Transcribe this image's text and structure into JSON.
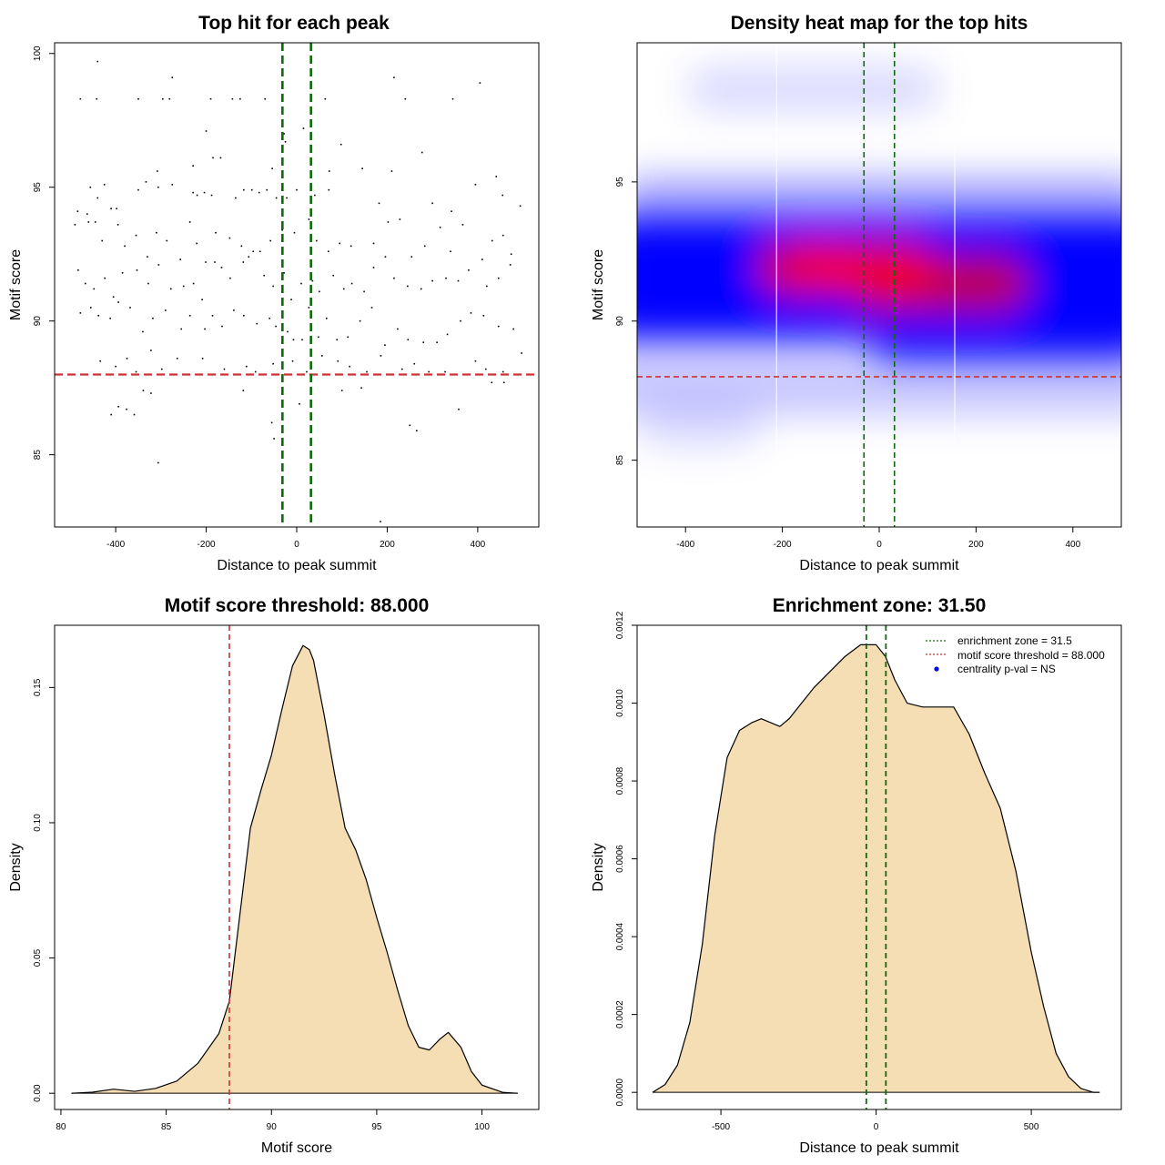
{
  "colors": {
    "threshold": "#cc3333",
    "zone": "#0b6b0b",
    "fill": "#f5deb3",
    "heat_low": "#ffffff",
    "heat_mid": "#0000ff",
    "heat_high": "#ff0000",
    "pval_marker": "#0000ff"
  },
  "chart_data": [
    {
      "type": "scatter",
      "title": "Top hit for each peak",
      "xlabel": "Distance to peak summit",
      "ylabel": "Motif score",
      "xlim": [
        -535,
        535
      ],
      "ylim": [
        82.3,
        100.4
      ],
      "xticks": [
        -400,
        -200,
        0,
        200,
        400
      ],
      "yticks": [
        85,
        90,
        95,
        100
      ],
      "xtick_labels": [
        "-400",
        "-200",
        "0",
        "200",
        "400"
      ],
      "ytick_labels": [
        "85",
        "90",
        "95",
        "100"
      ],
      "hline": 88.0,
      "vlines": [
        -31.5,
        31.5
      ],
      "points": [
        [
          -440,
          99.7
        ],
        [
          -478,
          98.3
        ],
        [
          -442,
          98.3
        ],
        [
          -350,
          98.3
        ],
        [
          -296,
          98.3
        ],
        [
          -281,
          98.3
        ],
        [
          -275,
          99.1
        ],
        [
          -190,
          98.3
        ],
        [
          -142,
          98.3
        ],
        [
          -125,
          98.3
        ],
        [
          -70,
          98.3
        ],
        [
          63,
          98.3
        ],
        [
          215,
          99.1
        ],
        [
          240,
          98.3
        ],
        [
          345,
          98.3
        ],
        [
          405,
          98.9
        ],
        [
          -200,
          97.1
        ],
        [
          -28,
          97.0
        ],
        [
          -25,
          96.7
        ],
        [
          15,
          97.2
        ],
        [
          98,
          96.6
        ],
        [
          -185,
          96.1
        ],
        [
          -168,
          96.1
        ],
        [
          -308,
          95.6
        ],
        [
          -229,
          95.8
        ],
        [
          -54,
          95.7
        ],
        [
          72,
          95.6
        ],
        [
          145,
          95.7
        ],
        [
          210,
          95.6
        ],
        [
          277,
          96.3
        ],
        [
          441,
          95.4
        ],
        [
          -484,
          94.1
        ],
        [
          -463,
          94.0
        ],
        [
          -456,
          95.0
        ],
        [
          -440,
          94.6
        ],
        [
          -425,
          95.1
        ],
        [
          -410,
          94.2
        ],
        [
          -398,
          94.2
        ],
        [
          -350,
          94.9
        ],
        [
          -333,
          95.2
        ],
        [
          -306,
          95.0
        ],
        [
          -275,
          95.1
        ],
        [
          -229,
          94.8
        ],
        [
          -220,
          94.7
        ],
        [
          -204,
          94.8
        ],
        [
          -188,
          94.7
        ],
        [
          -135,
          94.6
        ],
        [
          -117,
          94.9
        ],
        [
          -99,
          94.9
        ],
        [
          -83,
          94.8
        ],
        [
          -66,
          94.9
        ],
        [
          -45,
          94.6
        ],
        [
          -22,
          94.6
        ],
        [
          0,
          94.9
        ],
        [
          40,
          94.7
        ],
        [
          71,
          94.9
        ],
        [
          182,
          94.4
        ],
        [
          300,
          94.4
        ],
        [
          342,
          94.1
        ],
        [
          395,
          95.1
        ],
        [
          455,
          94.7
        ],
        [
          494,
          94.3
        ],
        [
          -490,
          93.6
        ],
        [
          -460,
          93.7
        ],
        [
          -445,
          93.7
        ],
        [
          -430,
          93.0
        ],
        [
          -395,
          93.6
        ],
        [
          -380,
          92.8
        ],
        [
          -355,
          93.2
        ],
        [
          -330,
          92.4
        ],
        [
          -310,
          93.3
        ],
        [
          -287,
          93.0
        ],
        [
          -257,
          92.3
        ],
        [
          -236,
          93.7
        ],
        [
          -221,
          92.9
        ],
        [
          -201,
          92.2
        ],
        [
          -179,
          93.3
        ],
        [
          -148,
          93.1
        ],
        [
          -122,
          92.8
        ],
        [
          -106,
          92.4
        ],
        [
          -81,
          92.6
        ],
        [
          -58,
          93.0
        ],
        [
          -32,
          93.4
        ],
        [
          -5,
          93.3
        ],
        [
          27,
          93.8
        ],
        [
          44,
          93.0
        ],
        [
          70,
          92.6
        ],
        [
          95,
          92.9
        ],
        [
          120,
          92.8
        ],
        [
          170,
          92.9
        ],
        [
          202,
          93.7
        ],
        [
          228,
          93.8
        ],
        [
          254,
          92.4
        ],
        [
          283,
          92.8
        ],
        [
          317,
          93.5
        ],
        [
          340,
          92.6
        ],
        [
          367,
          93.6
        ],
        [
          410,
          92.3
        ],
        [
          432,
          93.0
        ],
        [
          456,
          93.2
        ],
        [
          474,
          92.5
        ],
        [
          -483,
          91.9
        ],
        [
          -467,
          91.4
        ],
        [
          -448,
          91.2
        ],
        [
          -424,
          91.6
        ],
        [
          -405,
          90.9
        ],
        [
          -385,
          91.8
        ],
        [
          -353,
          91.9
        ],
        [
          -328,
          91.4
        ],
        [
          -305,
          92.1
        ],
        [
          -278,
          91.2
        ],
        [
          -250,
          91.3
        ],
        [
          -228,
          91.4
        ],
        [
          -209,
          90.8
        ],
        [
          -181,
          92.2
        ],
        [
          -166,
          92.0
        ],
        [
          -147,
          91.6
        ],
        [
          -118,
          92.2
        ],
        [
          -96,
          92.6
        ],
        [
          -72,
          91.7
        ],
        [
          -52,
          91.3
        ],
        [
          -28,
          91.8
        ],
        [
          -12,
          90.8
        ],
        [
          10,
          91.4
        ],
        [
          35,
          91.5
        ],
        [
          50,
          91.1
        ],
        [
          81,
          91.7
        ],
        [
          104,
          91.2
        ],
        [
          122,
          91.4
        ],
        [
          149,
          91.1
        ],
        [
          170,
          92.0
        ],
        [
          196,
          92.4
        ],
        [
          215,
          91.6
        ],
        [
          245,
          91.3
        ],
        [
          275,
          91.2
        ],
        [
          300,
          91.5
        ],
        [
          330,
          91.6
        ],
        [
          357,
          91.5
        ],
        [
          380,
          91.9
        ],
        [
          420,
          91.3
        ],
        [
          446,
          91.6
        ],
        [
          472,
          92.1
        ],
        [
          -478,
          90.3
        ],
        [
          -455,
          90.5
        ],
        [
          -438,
          90.2
        ],
        [
          -412,
          90.1
        ],
        [
          -394,
          90.7
        ],
        [
          -368,
          90.5
        ],
        [
          -340,
          89.6
        ],
        [
          -318,
          90.1
        ],
        [
          -290,
          90.4
        ],
        [
          -255,
          89.7
        ],
        [
          -236,
          90.2
        ],
        [
          -203,
          89.7
        ],
        [
          -186,
          90.2
        ],
        [
          -165,
          89.8
        ],
        [
          -139,
          90.4
        ],
        [
          -117,
          90.2
        ],
        [
          -88,
          89.9
        ],
        [
          -60,
          90.1
        ],
        [
          -46,
          89.8
        ],
        [
          -20,
          89.6
        ],
        [
          -7,
          89.3
        ],
        [
          12,
          89.3
        ],
        [
          27,
          90.5
        ],
        [
          48,
          89.4
        ],
        [
          66,
          90.1
        ],
        [
          89,
          89.3
        ],
        [
          113,
          89.4
        ],
        [
          140,
          90.0
        ],
        [
          166,
          90.5
        ],
        [
          195,
          89.1
        ],
        [
          223,
          89.7
        ],
        [
          246,
          89.3
        ],
        [
          280,
          89.2
        ],
        [
          310,
          89.2
        ],
        [
          333,
          89.5
        ],
        [
          362,
          90.0
        ],
        [
          385,
          90.3
        ],
        [
          413,
          90.2
        ],
        [
          446,
          89.8
        ],
        [
          479,
          89.7
        ],
        [
          -434,
          88.5
        ],
        [
          -400,
          88.3
        ],
        [
          -375,
          88.6
        ],
        [
          -355,
          88.1
        ],
        [
          -322,
          88.9
        ],
        [
          -298,
          88.2
        ],
        [
          -264,
          88.6
        ],
        [
          -208,
          88.6
        ],
        [
          -160,
          88.2
        ],
        [
          -111,
          88.3
        ],
        [
          -91,
          88.1
        ],
        [
          -52,
          88.4
        ],
        [
          -9,
          88.5
        ],
        [
          22,
          88.1
        ],
        [
          56,
          88.7
        ],
        [
          91,
          88.5
        ],
        [
          117,
          88.3
        ],
        [
          155,
          88.1
        ],
        [
          186,
          88.7
        ],
        [
          233,
          88.2
        ],
        [
          260,
          88.4
        ],
        [
          292,
          88.1
        ],
        [
          328,
          88.1
        ],
        [
          395,
          88.5
        ],
        [
          418,
          88.2
        ],
        [
          456,
          88.1
        ],
        [
          497,
          88.8
        ],
        [
          -410,
          86.5
        ],
        [
          -394,
          86.8
        ],
        [
          -376,
          86.7
        ],
        [
          -359,
          86.5
        ],
        [
          -339,
          87.4
        ],
        [
          -322,
          87.3
        ],
        [
          -118,
          87.4
        ],
        [
          6,
          86.9
        ],
        [
          100,
          87.4
        ],
        [
          143,
          87.5
        ],
        [
          250,
          86.1
        ],
        [
          265,
          85.9
        ],
        [
          358,
          86.7
        ],
        [
          431,
          87.7
        ],
        [
          458,
          87.7
        ],
        [
          -306,
          84.7
        ],
        [
          -55,
          86.2
        ],
        [
          -50,
          85.6
        ],
        [
          185,
          82.5
        ]
      ]
    },
    {
      "type": "heatmap",
      "title": "Density heat map for the top hits",
      "xlabel": "Distance to peak summit",
      "ylabel": "Motif score",
      "xlim": [
        -500,
        500
      ],
      "ylim": [
        82.6,
        100.0
      ],
      "xticks": [
        -400,
        -200,
        0,
        200,
        400
      ],
      "yticks": [
        85,
        90,
        95
      ],
      "xtick_labels": [
        "-400",
        "-200",
        "0",
        "200",
        "400"
      ],
      "ytick_labels": [
        "85",
        "90",
        "95"
      ],
      "hline": 88.0,
      "vlines": [
        -31.5,
        31.5
      ],
      "white_vlines": [
        -212,
        156
      ]
    },
    {
      "type": "area",
      "title": "Motif score threshold: 88.000",
      "xlabel": "Motif score",
      "ylabel": "Density",
      "xlim": [
        79.7,
        102.7
      ],
      "ylim": [
        -0.006,
        0.173
      ],
      "xticks": [
        80,
        85,
        90,
        95,
        100
      ],
      "yticks": [
        0.0,
        0.05,
        0.1,
        0.15
      ],
      "xtick_labels": [
        "80",
        "85",
        "90",
        "95",
        "100"
      ],
      "ytick_labels": [
        "0.00",
        "0.05",
        "0.10",
        "0.15"
      ],
      "vline": 88.0,
      "x": [
        80.5,
        81.5,
        82.5,
        83.5,
        84.5,
        85.5,
        86.5,
        87.5,
        88.0,
        88.5,
        89.0,
        89.5,
        90.0,
        90.5,
        91.0,
        91.5,
        91.8,
        92.0,
        92.5,
        93.0,
        93.5,
        94.0,
        94.5,
        95.0,
        95.5,
        96.0,
        96.5,
        97.0,
        97.5,
        98.0,
        98.4,
        99.0,
        99.5,
        100.0,
        101.0,
        101.7
      ],
      "y": [
        0.0,
        0.0004,
        0.0015,
        0.0007,
        0.0018,
        0.0045,
        0.011,
        0.022,
        0.034,
        0.066,
        0.098,
        0.112,
        0.125,
        0.142,
        0.158,
        0.1655,
        0.164,
        0.16,
        0.14,
        0.118,
        0.098,
        0.09,
        0.079,
        0.065,
        0.052,
        0.038,
        0.025,
        0.017,
        0.016,
        0.02,
        0.0225,
        0.017,
        0.008,
        0.003,
        0.0003,
        0.0
      ]
    },
    {
      "type": "area",
      "title": "Enrichment zone: 31.50",
      "xlabel": "Distance to peak summit",
      "ylabel": "Density",
      "xlim": [
        -770,
        790
      ],
      "ylim": [
        -4.4e-05,
        0.0012
      ],
      "xticks": [
        -500,
        0,
        500
      ],
      "yticks": [
        0.0,
        0.0002,
        0.0004,
        0.0006,
        0.0008,
        0.001,
        0.0012
      ],
      "xtick_labels": [
        "-500",
        "0",
        "500"
      ],
      "ytick_labels": [
        "0.0000",
        "0.0002",
        "0.0004",
        "0.0006",
        "0.0008",
        "0.0010",
        "0.0012"
      ],
      "vlines": [
        -31.5,
        31.5
      ],
      "x": [
        -720,
        -680,
        -640,
        -600,
        -560,
        -520,
        -480,
        -440,
        -400,
        -370,
        -340,
        -310,
        -280,
        -250,
        -200,
        -150,
        -100,
        -50,
        0,
        30,
        60,
        100,
        150,
        200,
        250,
        300,
        350,
        400,
        450,
        500,
        540,
        580,
        620,
        660,
        700,
        720
      ],
      "y": [
        0.0,
        2e-05,
        7e-05,
        0.00018,
        0.00038,
        0.00066,
        0.00086,
        0.00093,
        0.00095,
        0.00096,
        0.00095,
        0.00094,
        0.00096,
        0.00099,
        0.00104,
        0.00108,
        0.00112,
        0.00115,
        0.00115,
        0.00112,
        0.00106,
        0.001,
        0.00099,
        0.00099,
        0.00099,
        0.00092,
        0.00082,
        0.00073,
        0.00057,
        0.00036,
        0.00022,
        0.0001,
        4e-05,
        1e-05,
        0.0,
        0.0
      ],
      "legend": {
        "position": "top-right",
        "entries": [
          {
            "label": "enrichment zone = 31.5",
            "style": "dotted-line",
            "color": "#0b6b0b"
          },
          {
            "label": "motif score threshold = 88.000",
            "style": "dotted-line",
            "color": "#cc3333"
          },
          {
            "label": "centrality p-val = NS",
            "style": "dot",
            "color": "#0000ff"
          }
        ]
      }
    }
  ]
}
